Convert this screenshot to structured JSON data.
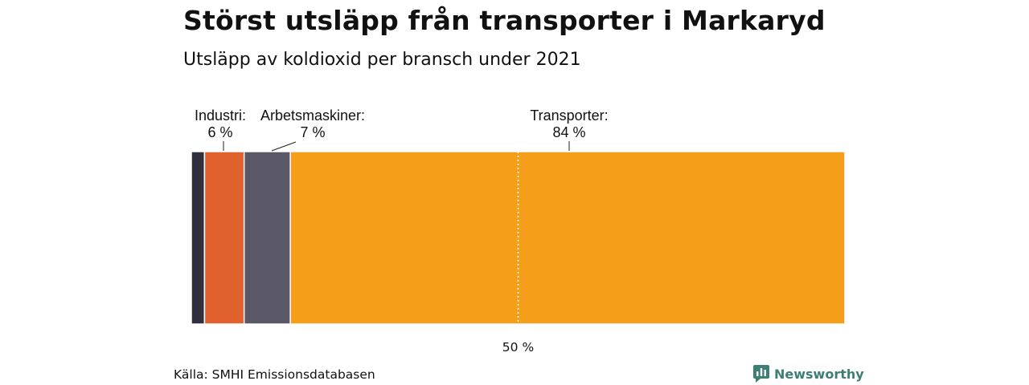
{
  "title": "Störst utsläpp från transporter i Markaryd",
  "subtitle": "Utsläpp av koldioxid per bransch under 2021",
  "source": "Källa: SMHI Emissionsdatabasen",
  "brand": {
    "name": "Newsworthy",
    "icon": "bar-chart-logo-icon",
    "color": "#3d7f74"
  },
  "chart_data": {
    "type": "bar",
    "stacked": true,
    "orientation": "horizontal",
    "title": "Störst utsläpp från transporter i Markaryd",
    "subtitle": "Utsläpp av koldioxid per bransch under 2021",
    "unit": "%",
    "xlim": [
      0,
      100
    ],
    "reference_line": {
      "value": 50,
      "label": "50 %"
    },
    "segments": [
      {
        "name": "",
        "value": 2,
        "label": "",
        "color": "#2f2f3d"
      },
      {
        "name": "Industri:",
        "value": 6,
        "label": "6 %",
        "color": "#e0602e"
      },
      {
        "name": "Arbetsmaskiner:",
        "value": 7,
        "label": "7 %",
        "color": "#5a5766"
      },
      {
        "name": "Transporter:",
        "value": 84,
        "label": "84 %",
        "color": "#f59e1a"
      }
    ]
  }
}
